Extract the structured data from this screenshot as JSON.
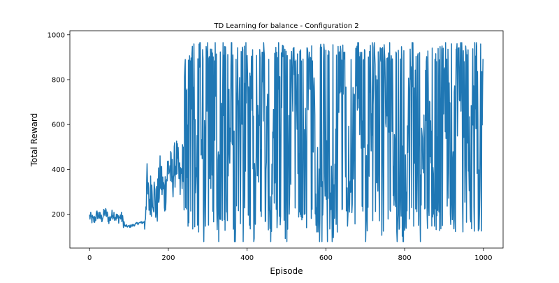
{
  "chart_data": {
    "type": "line",
    "title": "TD Learning for balance - Configuration 2",
    "xlabel": "Episode",
    "ylabel": "Total Reward",
    "xlim": [
      -50,
      1050
    ],
    "ylim": [
      49,
      1018
    ],
    "xticks": [
      0,
      200,
      400,
      600,
      800,
      1000
    ],
    "yticks": [
      200,
      400,
      600,
      800,
      1000
    ],
    "grid": false,
    "series": [
      {
        "name": "",
        "color": "#1f77b4",
        "episode_range": [
          0,
          999
        ],
        "anchor_points": [
          [
            0,
            190
          ],
          [
            10,
            170
          ],
          [
            20,
            200
          ],
          [
            30,
            180
          ],
          [
            40,
            210
          ],
          [
            50,
            175
          ],
          [
            60,
            205
          ],
          [
            70,
            180
          ],
          [
            80,
            190
          ],
          [
            90,
            148
          ],
          [
            100,
            145
          ],
          [
            110,
            150
          ],
          [
            120,
            158
          ],
          [
            130,
            162
          ],
          [
            140,
            165
          ],
          [
            145,
            340
          ],
          [
            150,
            250
          ],
          [
            160,
            320
          ],
          [
            170,
            230
          ],
          [
            180,
            370
          ],
          [
            190,
            280
          ],
          [
            200,
            420
          ],
          [
            210,
            360
          ],
          [
            220,
            450
          ],
          [
            230,
            330
          ],
          [
            240,
            480
          ],
          [
            245,
            880
          ],
          [
            250,
            300
          ],
          [
            260,
            950
          ],
          [
            270,
            240
          ],
          [
            280,
            870
          ],
          [
            290,
            200
          ],
          [
            300,
            940
          ],
          [
            310,
            220
          ],
          [
            320,
            900
          ],
          [
            330,
            180
          ],
          [
            340,
            850
          ],
          [
            350,
            250
          ],
          [
            360,
            920
          ],
          [
            370,
            190
          ],
          [
            380,
            880
          ],
          [
            390,
            210
          ],
          [
            400,
            960
          ],
          [
            420,
            230
          ],
          [
            440,
            900
          ],
          [
            460,
            190
          ],
          [
            480,
            930
          ],
          [
            500,
            200
          ],
          [
            520,
            950
          ],
          [
            540,
            250
          ],
          [
            560,
            880
          ],
          [
            580,
            220
          ],
          [
            600,
            300
          ],
          [
            620,
            260
          ],
          [
            640,
            920
          ],
          [
            660,
            280
          ],
          [
            680,
            900
          ],
          [
            700,
            250
          ],
          [
            720,
            930
          ],
          [
            740,
            200
          ],
          [
            760,
            850
          ],
          [
            780,
            240
          ],
          [
            800,
            300
          ],
          [
            820,
            880
          ],
          [
            840,
            260
          ],
          [
            860,
            900
          ],
          [
            880,
            230
          ],
          [
            900,
            940
          ],
          [
            920,
            280
          ],
          [
            940,
            960
          ],
          [
            960,
            300
          ],
          [
            980,
            900
          ],
          [
            990,
            280
          ],
          [
            999,
            930
          ]
        ]
      }
    ]
  }
}
